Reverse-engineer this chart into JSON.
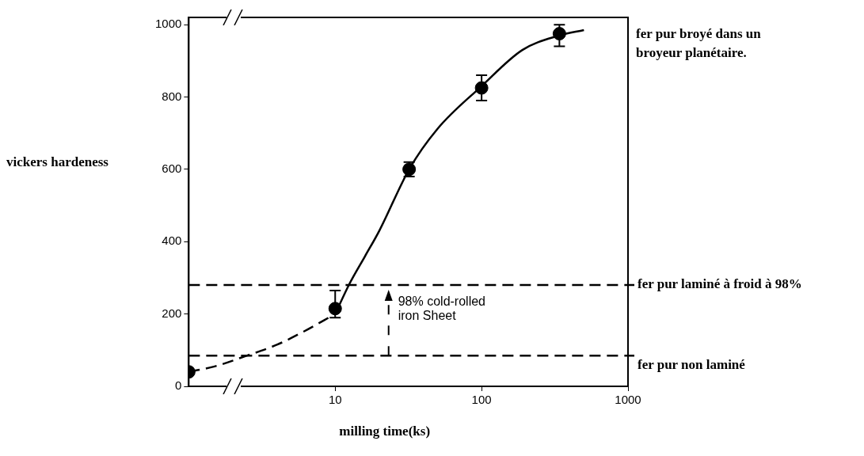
{
  "chart_data": {
    "type": "line",
    "xlabel": "milling time(ks)",
    "ylabel": "vickers hardeness",
    "log": "x",
    "xlim": [
      1,
      1000
    ],
    "xticks": [
      10,
      100,
      1000
    ],
    "ylim": [
      0,
      1020
    ],
    "yticks": [
      0,
      200,
      400,
      600,
      800,
      1000
    ],
    "grid": false,
    "legend": false,
    "series": [
      {
        "type": "scatter",
        "color": "#000000",
        "marker": "circle",
        "x": [
          1,
          10,
          32,
          100,
          340
        ],
        "values": [
          40,
          215,
          600,
          825,
          975
        ],
        "errors": [
          null,
          [
            190,
            265
          ],
          [
            580,
            620
          ],
          [
            790,
            860
          ],
          [
            940,
            1000
          ]
        ]
      },
      {
        "color": "#000000",
        "marker": "none",
        "line_style": "dashed",
        "x": [
          1,
          1.5,
          2.5,
          4,
          6,
          10
        ],
        "values": [
          40,
          55,
          85,
          115,
          150,
          200
        ]
      },
      {
        "color": "#000000",
        "marker": "none",
        "line_style": "solid",
        "x": [
          10,
          12.5,
          16,
          20,
          32,
          50,
          100,
          190,
          340,
          500
        ],
        "values": [
          200,
          283,
          360,
          430,
          600,
          712,
          830,
          930,
          970,
          985
        ]
      }
    ],
    "ref_lines": [
      {
        "axis": "y",
        "value": 280,
        "label": "fer pur laminé à froid à 98%",
        "line_style": "dashed",
        "color": "#000000"
      },
      {
        "axis": "y",
        "value": 85,
        "label": "fer pur non laminé",
        "line_style": "dashed",
        "color": "#000000"
      }
    ],
    "annotations": [
      "fer pur broyé dans un broyeur planétaire.",
      "98% cold-rolled\niron Sheet"
    ]
  }
}
